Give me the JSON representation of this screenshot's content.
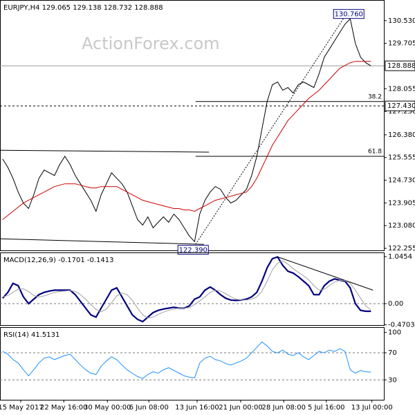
{
  "chart_data": [
    {
      "type": "line",
      "title": "EURJPY,H4 129.065 129.138 128.732 128.888",
      "watermark": "ActionForex.com",
      "xlim": [
        -0.5,
        73.5
      ],
      "ylim": [
        122.18,
        131.28
      ],
      "yticks": [
        {
          "value": 130.53,
          "label": "130.530"
        },
        129.705,
        128.055,
        {
          "value": 127.23,
          "label": "127.230"
        },
        {
          "value": 126.38,
          "label": "126.380"
        },
        125.555,
        {
          "value": 124.73,
          "label": "124.730"
        },
        123.905,
        {
          "value": 123.08,
          "label": "123.080"
        },
        122.255
      ],
      "series": [
        {
          "color": "#000000",
          "values": [
            125.5,
            125.2,
            124.8,
            124.3,
            123.9,
            123.7,
            124.2,
            124.8,
            125.1,
            125.0,
            124.9,
            125.3,
            125.6,
            125.3,
            124.9,
            124.6,
            124.3,
            124.0,
            123.6,
            124.2,
            124.6,
            125.0,
            124.8,
            124.6,
            124.3,
            123.8,
            123.3,
            123.1,
            123.4,
            123.0,
            123.2,
            123.4,
            123.2,
            123.5,
            123.3,
            123.0,
            122.7,
            122.5,
            123.5,
            124.0,
            124.3,
            124.5,
            124.4,
            124.1,
            123.9,
            124.0,
            124.2,
            124.4,
            124.9,
            125.6,
            126.6,
            127.6,
            128.2,
            128.3,
            128.0,
            128.1,
            127.9,
            128.2,
            128.3,
            128.2,
            128.1,
            128.6,
            129.2,
            129.5,
            129.8,
            130.1,
            130.4,
            130.6,
            129.7,
            129.2,
            129.0,
            128.888
          ]
        },
        {
          "color": "#cc0000",
          "values": [
            123.3,
            123.45,
            123.6,
            123.75,
            123.9,
            124.0,
            124.1,
            124.2,
            124.3,
            124.4,
            124.5,
            124.55,
            124.6,
            124.6,
            124.6,
            124.55,
            124.5,
            124.45,
            124.45,
            124.5,
            124.5,
            124.5,
            124.5,
            124.4,
            124.3,
            124.2,
            124.1,
            124.0,
            123.95,
            123.9,
            123.85,
            123.8,
            123.75,
            123.7,
            123.7,
            123.65,
            123.65,
            123.6,
            123.7,
            123.8,
            123.9,
            124.0,
            124.05,
            124.1,
            124.15,
            124.2,
            124.25,
            124.3,
            124.5,
            124.8,
            125.2,
            125.6,
            126.0,
            126.3,
            126.6,
            126.9,
            127.1,
            127.3,
            127.5,
            127.7,
            127.85,
            128.0,
            128.2,
            128.4,
            128.6,
            128.8,
            128.9,
            129.0,
            129.05,
            129.05,
            129.05,
            129.05
          ]
        }
      ],
      "markers": [
        {
          "value": 128.888,
          "label": "128.888"
        },
        {
          "value": 127.43,
          "label": "127.430"
        }
      ],
      "fib": [
        {
          "label": "38.2",
          "value": 127.59,
          "x": 37.2
        },
        {
          "label": "61.8",
          "value": 125.6,
          "x": 37.2
        }
      ],
      "extremes": [
        {
          "label": "130.760",
          "x": 67,
          "value": 130.76
        },
        {
          "label": "122.390",
          "x": 37,
          "value": 122.39
        }
      ],
      "trendlines": [
        [
          [
            -0.5,
            125.82
          ],
          [
            39.8,
            125.75
          ]
        ],
        [
          [
            -0.5,
            122.6
          ],
          [
            38.8,
            122.4
          ]
        ],
        [
          [
            37.2,
            122.4
          ],
          [
            66.2,
            130.75
          ]
        ]
      ]
    },
    {
      "type": "line",
      "title": "MACD(12,26,9) -0.1701 -0.1413",
      "xlim": [
        -0.5,
        73.5
      ],
      "ylim": [
        -0.477,
        1.138
      ],
      "yticks": [
        1.0454,
        {
          "value": 0,
          "label": "0.00"
        },
        -0.4703
      ],
      "series": [
        {
          "color": "#000080",
          "values": [
            0.12,
            0.25,
            0.45,
            0.4,
            0.15,
            0.0,
            0.1,
            0.2,
            0.25,
            0.28,
            0.3,
            0.3,
            0.3,
            0.3,
            0.2,
            0.05,
            -0.1,
            -0.25,
            -0.3,
            -0.1,
            0.1,
            0.3,
            0.35,
            0.15,
            -0.05,
            -0.25,
            -0.35,
            -0.4,
            -0.3,
            -0.2,
            -0.15,
            -0.12,
            -0.1,
            -0.08,
            -0.1,
            -0.1,
            -0.05,
            0.1,
            0.15,
            0.3,
            0.37,
            0.3,
            0.2,
            0.12,
            0.08,
            0.07,
            0.08,
            0.1,
            0.15,
            0.25,
            0.5,
            0.8,
            1.0,
            1.04,
            0.85,
            0.72,
            0.68,
            0.6,
            0.5,
            0.4,
            0.2,
            0.2,
            0.4,
            0.5,
            0.55,
            0.52,
            0.5,
            0.35,
            0.0,
            -0.15,
            -0.17,
            -0.17
          ]
        },
        {
          "color": "#a0a0a0",
          "values": [
            0.15,
            0.18,
            0.25,
            0.32,
            0.33,
            0.27,
            0.18,
            0.15,
            0.17,
            0.21,
            0.25,
            0.27,
            0.28,
            0.29,
            0.27,
            0.2,
            0.1,
            -0.02,
            -0.13,
            -0.18,
            -0.12,
            0.02,
            0.17,
            0.24,
            0.2,
            0.07,
            -0.1,
            -0.25,
            -0.32,
            -0.3,
            -0.24,
            -0.19,
            -0.15,
            -0.12,
            -0.1,
            -0.1,
            -0.09,
            -0.02,
            0.06,
            0.15,
            0.25,
            0.3,
            0.28,
            0.22,
            0.15,
            0.1,
            0.08,
            0.08,
            0.1,
            0.15,
            0.28,
            0.5,
            0.75,
            0.9,
            0.95,
            0.88,
            0.78,
            0.7,
            0.62,
            0.53,
            0.4,
            0.3,
            0.32,
            0.4,
            0.48,
            0.52,
            0.51,
            0.45,
            0.3,
            0.12,
            -0.05,
            -0.14
          ]
        }
      ],
      "trendlines": [
        [
          [
            53.0,
            1.04
          ],
          [
            71.4,
            0.3
          ]
        ]
      ]
    },
    {
      "type": "line",
      "title": "RSI(14) 41.5131",
      "xlim": [
        -0.5,
        73.5
      ],
      "ylim": [
        0.7,
        107.8
      ],
      "yticks": [
        100,
        70,
        30
      ],
      "grid": [
        70,
        30
      ],
      "xticks": [
        {
          "value": 3.5,
          "label": "15 May 2017"
        },
        {
          "value": 11.8,
          "label": "22 May 16:00"
        },
        {
          "value": 20.2,
          "label": "30 May 00:00"
        },
        {
          "value": 28.2,
          "label": "6 Jun 08:00"
        },
        {
          "value": 37.5,
          "label": "13 Jun 16:00"
        },
        {
          "value": 45.9,
          "label": "21 Jun 00:00"
        },
        {
          "value": 54.2,
          "label": "28 Jun 08:00"
        },
        {
          "value": 62.4,
          "label": "5 Jul 16:00"
        },
        {
          "value": 71.2,
          "label": "13 Jul 00:00"
        }
      ],
      "series": [
        {
          "color": "#1e90ff",
          "values": [
            72,
            68,
            60,
            55,
            45,
            36,
            45,
            55,
            62,
            64,
            60,
            63,
            66,
            68,
            60,
            52,
            45,
            40,
            38,
            50,
            58,
            64,
            60,
            52,
            45,
            40,
            35,
            32,
            38,
            42,
            40,
            45,
            48,
            44,
            40,
            36,
            34,
            33,
            55,
            62,
            65,
            60,
            58,
            54,
            52,
            55,
            58,
            62,
            70,
            78,
            86,
            80,
            72,
            70,
            74,
            68,
            66,
            70,
            64,
            60,
            66,
            72,
            70,
            74,
            72,
            76,
            72,
            45,
            40,
            44,
            42,
            41.5131
          ]
        }
      ]
    }
  ]
}
